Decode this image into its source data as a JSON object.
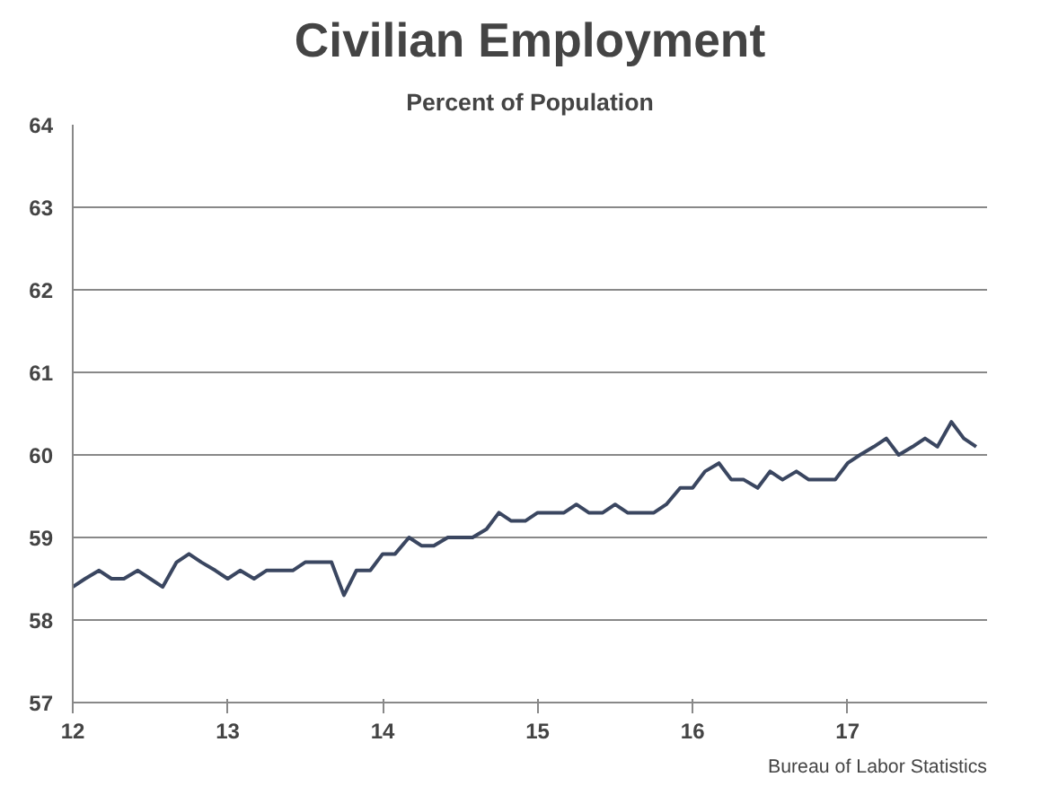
{
  "chart_data": {
    "type": "line",
    "title": "Civilian Employment",
    "subtitle": "Percent of Population",
    "annotations": [
      "Bureau of Labor Statistics"
    ],
    "x": [
      12,
      12.08,
      12.17,
      12.25,
      12.33,
      12.42,
      12.5,
      12.58,
      12.67,
      12.75,
      12.83,
      12.92,
      13,
      13.08,
      13.17,
      13.25,
      13.33,
      13.42,
      13.5,
      13.58,
      13.67,
      13.75,
      13.83,
      13.92,
      14,
      14.08,
      14.17,
      14.25,
      14.33,
      14.42,
      14.5,
      14.58,
      14.67,
      14.75,
      14.83,
      14.92,
      15,
      15.08,
      15.17,
      15.25,
      15.33,
      15.42,
      15.5,
      15.58,
      15.67,
      15.75,
      15.83,
      15.92,
      16,
      16.08,
      16.17,
      16.25,
      16.33,
      16.42,
      16.5,
      16.58,
      16.67,
      16.75,
      16.83,
      16.92,
      17,
      17.08,
      17.17,
      17.25,
      17.33,
      17.42,
      17.5,
      17.58,
      17.67,
      17.75,
      17.83
    ],
    "series": [
      {
        "color": "#3a4660",
        "values": [
          58.4,
          58.5,
          58.6,
          58.5,
          58.5,
          58.6,
          58.5,
          58.4,
          58.7,
          58.8,
          58.7,
          58.6,
          58.5,
          58.6,
          58.5,
          58.6,
          58.6,
          58.6,
          58.7,
          58.7,
          58.7,
          58.3,
          58.6,
          58.6,
          58.8,
          58.8,
          59.0,
          58.9,
          58.9,
          59.0,
          59.0,
          59.0,
          59.1,
          59.3,
          59.2,
          59.2,
          59.3,
          59.3,
          59.3,
          59.4,
          59.3,
          59.3,
          59.4,
          59.3,
          59.3,
          59.3,
          59.4,
          59.6,
          59.6,
          59.8,
          59.9,
          59.7,
          59.7,
          59.6,
          59.8,
          59.7,
          59.8,
          59.7,
          59.7,
          59.7,
          59.9,
          60.0,
          60.1,
          60.2,
          60.0,
          60.1,
          60.2,
          60.1,
          60.4,
          60.2,
          60.1
        ]
      }
    ],
    "xlim": [
      12,
      17.9
    ],
    "xticks": [
      12,
      13,
      14,
      15,
      16,
      17
    ],
    "ylim": [
      57,
      64
    ],
    "yticks": [
      57,
      58,
      59,
      60,
      61,
      62,
      63,
      64
    ],
    "grid": "y",
    "marker": "none",
    "line_style": "solid"
  }
}
